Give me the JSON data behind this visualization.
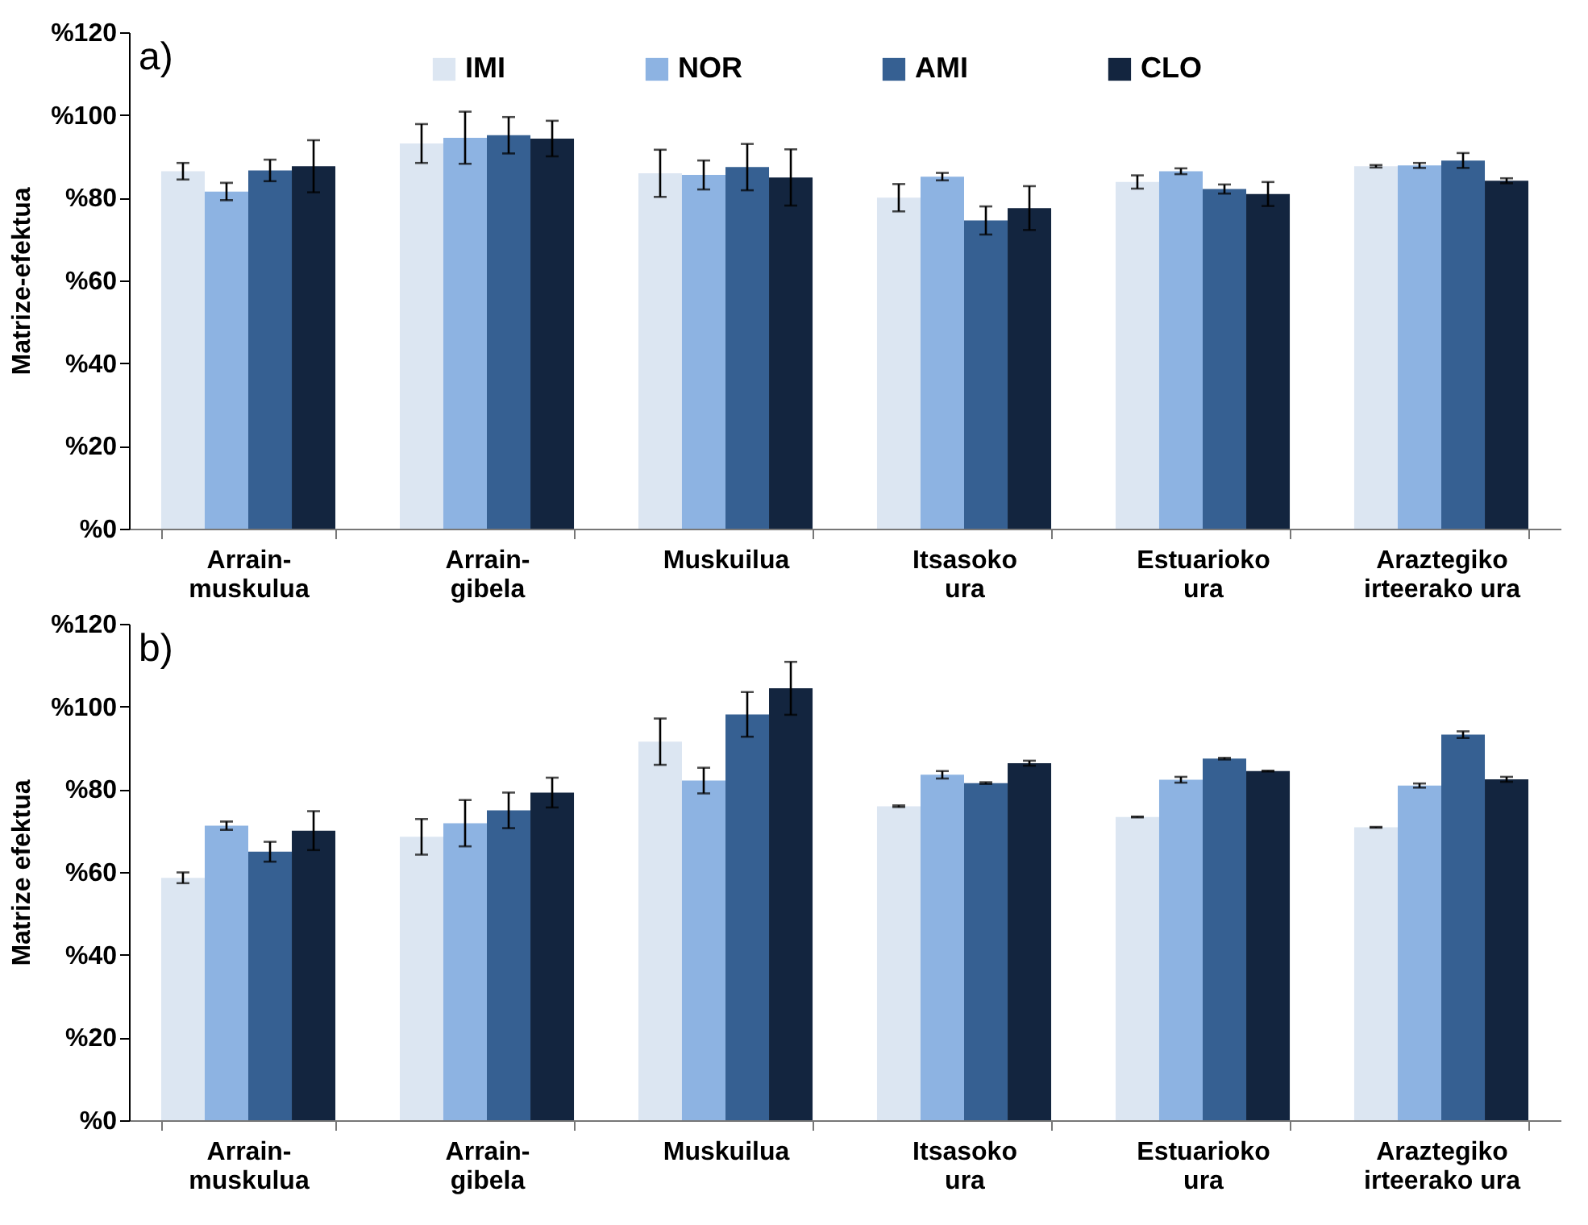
{
  "chart_data": [
    {
      "type": "bar",
      "ylabel": "Matrize-efektua",
      "annotations": [
        "a)"
      ],
      "legend": "top",
      "categories": [
        "Arrain-muskulua",
        "Arrain-gibela",
        "Muskuilua",
        "Itsasoko ura",
        "Estuarioko ura",
        "Araztegiko irteerako ura"
      ],
      "ylim": [
        0,
        120
      ],
      "yticks": [
        {
          "value": 0,
          "label": "%0"
        },
        {
          "value": 20,
          "label": "%20"
        },
        {
          "value": 40,
          "label": "%40"
        },
        {
          "value": 60,
          "label": "%60"
        },
        {
          "value": 80,
          "label": "%80"
        },
        {
          "value": 100,
          "label": "%100"
        },
        {
          "value": 120,
          "label": "%120"
        }
      ],
      "series": [
        {
          "name": "IMI",
          "color": "#dce6f2",
          "values": [
            86.4,
            93.1,
            85.9,
            80.0,
            83.8,
            87.6
          ],
          "errors": [
            2.0,
            4.7,
            5.7,
            3.3,
            1.6,
            0.3
          ]
        },
        {
          "name": "NOR",
          "color": "#8db3e2",
          "values": [
            81.5,
            94.5,
            85.5,
            85.1,
            86.4,
            87.8
          ],
          "errors": [
            2.1,
            6.3,
            3.5,
            0.9,
            0.7,
            0.6
          ]
        },
        {
          "name": "AMI",
          "color": "#366092",
          "values": [
            86.6,
            95.1,
            87.4,
            74.5,
            82.1,
            89.0
          ],
          "errors": [
            2.6,
            4.4,
            5.6,
            3.4,
            1.1,
            1.8
          ]
        },
        {
          "name": "CLO",
          "color": "#13253f",
          "values": [
            87.6,
            94.3,
            84.9,
            77.5,
            80.9,
            84.1
          ],
          "errors": [
            6.3,
            4.3,
            6.8,
            5.3,
            2.9,
            0.6
          ]
        }
      ]
    },
    {
      "type": "bar",
      "ylabel": "Matrize efektua",
      "annotations": [
        "b)"
      ],
      "categories": [
        "Arrain-muskulua",
        "Arrain-gibela",
        "Muskuilua",
        "Itsasoko ura",
        "Estuarioko ura",
        "Araztegiko irteerako ura"
      ],
      "ylim": [
        0,
        120
      ],
      "yticks": [
        {
          "value": 0,
          "label": "%0"
        },
        {
          "value": 20,
          "label": "%20"
        },
        {
          "value": 40,
          "label": "%40"
        },
        {
          "value": 60,
          "label": "%60"
        },
        {
          "value": 80,
          "label": "%80"
        },
        {
          "value": 100,
          "label": "%100"
        },
        {
          "value": 120,
          "label": "%120"
        }
      ],
      "series": [
        {
          "color": "#dce6f2",
          "values": [
            58.6,
            68.5,
            91.5,
            75.9,
            73.3,
            70.8
          ],
          "errors": [
            1.3,
            4.3,
            5.6,
            0.2,
            0.1,
            0.1
          ]
        },
        {
          "color": "#8db3e2",
          "values": [
            71.2,
            71.8,
            82.1,
            83.5,
            82.3,
            80.9
          ],
          "errors": [
            1.0,
            5.6,
            3.1,
            0.9,
            0.7,
            0.5
          ]
        },
        {
          "color": "#366092",
          "values": [
            64.9,
            74.9,
            98.1,
            81.5,
            87.4,
            93.2
          ],
          "errors": [
            2.4,
            4.3,
            5.4,
            0.2,
            0.2,
            0.8
          ]
        },
        {
          "color": "#13253f",
          "values": [
            70.0,
            79.2,
            104.4,
            86.3,
            84.4,
            82.4
          ],
          "errors": [
            4.7,
            3.6,
            6.4,
            0.6,
            0.1,
            0.6
          ]
        }
      ]
    }
  ]
}
